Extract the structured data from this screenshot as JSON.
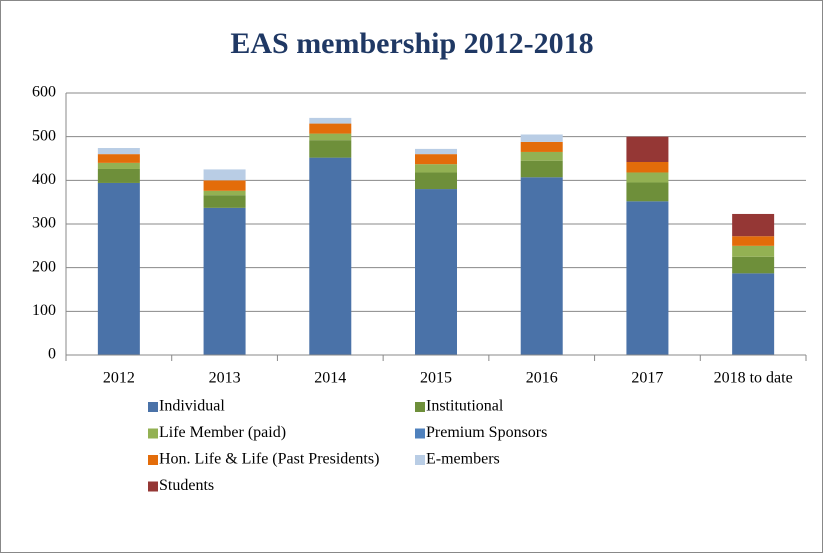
{
  "chart_data": {
    "type": "stacked_bar",
    "title": "EAS membership 2012-2018",
    "categories": [
      "2012",
      "2013",
      "2014",
      "2015",
      "2016",
      "2017",
      "2018 to date"
    ],
    "series": [
      {
        "name": "Individual",
        "color": "#4a72a8",
        "values": [
          394,
          337,
          452,
          380,
          407,
          352,
          187
        ]
      },
      {
        "name": "Institutional",
        "color": "#6e8f3a",
        "values": [
          32,
          29,
          40,
          38,
          38,
          43,
          38
        ]
      },
      {
        "name": "Life Member (paid)",
        "color": "#93b153",
        "values": [
          14,
          10,
          15,
          19,
          20,
          23,
          25
        ]
      },
      {
        "name": "Premium Sponsors",
        "color": "#4f81bd",
        "values": [
          0,
          0,
          0,
          0,
          0,
          0,
          0
        ]
      },
      {
        "name": "Hon. Life & Life (Past Presidents)",
        "color": "#e36c0a",
        "values": [
          20,
          24,
          23,
          23,
          23,
          24,
          22
        ]
      },
      {
        "name": "E-members",
        "color": "#b9cde5",
        "values": [
          14,
          25,
          13,
          12,
          17,
          0,
          0
        ]
      },
      {
        "name": "Students",
        "color": "#953735",
        "values": [
          0,
          0,
          0,
          0,
          0,
          58,
          51
        ]
      }
    ],
    "ylim": [
      0,
      600
    ],
    "yticks": [
      0,
      100,
      200,
      300,
      400,
      500,
      600
    ],
    "grid": true,
    "legend": "bottom"
  }
}
